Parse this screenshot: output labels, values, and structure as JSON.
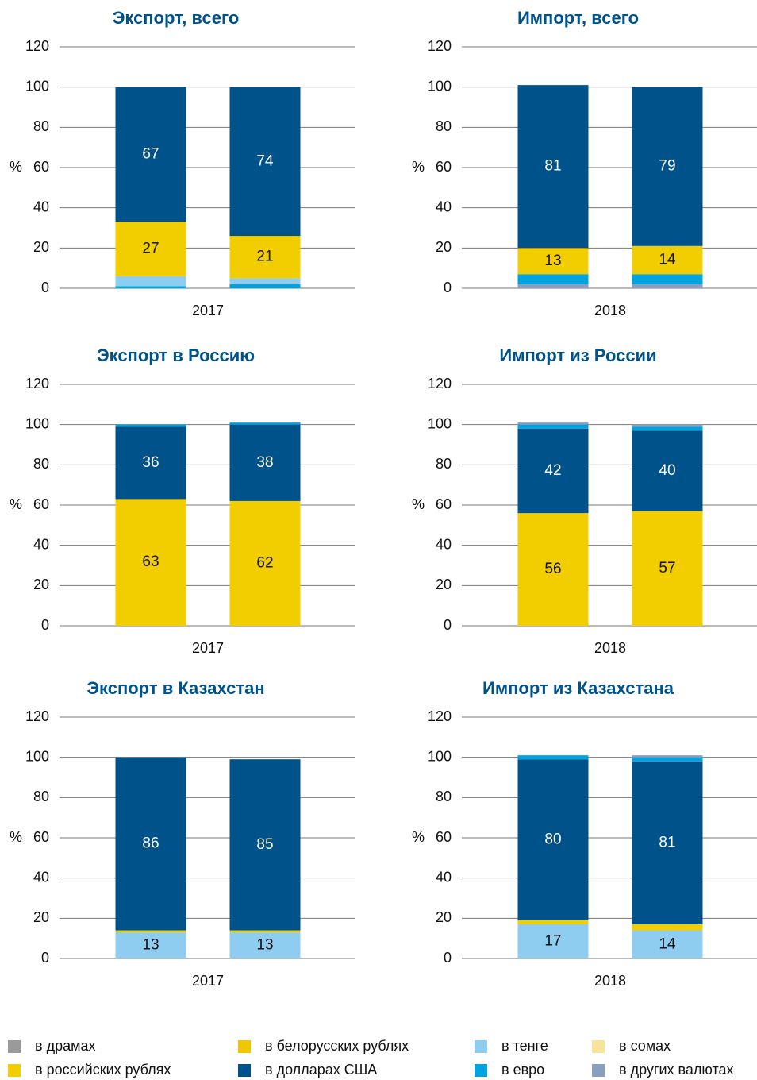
{
  "legend": [
    {
      "name": "в драмах",
      "color": "#9a9a9a"
    },
    {
      "name": "в белорусских рублях",
      "color": "#f0c800"
    },
    {
      "name": "в тенге",
      "color": "#8ecdf0"
    },
    {
      "name": "в сомах",
      "color": "#f7e49a"
    },
    {
      "name": "в российских рублях",
      "color": "#f2cd00"
    },
    {
      "name": "в долларах США",
      "color": "#00538a"
    },
    {
      "name": "в евро",
      "color": "#00a3e0"
    },
    {
      "name": "в других валютах",
      "color": "#8a9fc0"
    }
  ],
  "chart_data": [
    {
      "type": "bar",
      "stacked": true,
      "title": "Экспорт, всего",
      "ylabel": "%",
      "xlabel": "2017",
      "categories": [
        null,
        null
      ],
      "ylim": [
        0,
        120
      ],
      "yticks": [
        0,
        20,
        40,
        60,
        80,
        100,
        120
      ],
      "series": [
        {
          "name": "в евро",
          "values": [
            1,
            2
          ]
        },
        {
          "name": "в тенге",
          "values": [
            5,
            3
          ]
        },
        {
          "name": "в российских рублях",
          "values": [
            27,
            21
          ]
        },
        {
          "name": "в долларах США",
          "values": [
            67,
            74
          ]
        }
      ]
    },
    {
      "type": "bar",
      "stacked": true,
      "title": "Импорт, всего",
      "ylabel": "%",
      "xlabel": "2018",
      "categories": [
        null,
        null
      ],
      "ylim": [
        0,
        120
      ],
      "yticks": [
        0,
        20,
        40,
        60,
        80,
        100,
        120
      ],
      "series": [
        {
          "name": "в других валютах",
          "values": [
            2,
            2
          ]
        },
        {
          "name": "в евро",
          "values": [
            5,
            5
          ]
        },
        {
          "name": "в российских рублях",
          "values": [
            13,
            14
          ]
        },
        {
          "name": "в долларах США",
          "values": [
            81,
            79
          ]
        }
      ]
    },
    {
      "type": "bar",
      "stacked": true,
      "title": "Экспорт в Россию",
      "ylabel": "%",
      "xlabel": "2017",
      "categories": [
        null,
        null
      ],
      "ylim": [
        0,
        120
      ],
      "yticks": [
        0,
        20,
        40,
        60,
        80,
        100,
        120
      ],
      "series": [
        {
          "name": "в российских рублях",
          "values": [
            63,
            62
          ]
        },
        {
          "name": "в долларах США",
          "values": [
            36,
            38
          ]
        },
        {
          "name": "в евро",
          "values": [
            1,
            1
          ]
        }
      ]
    },
    {
      "type": "bar",
      "stacked": true,
      "title": "Импорт из России",
      "ylabel": "%",
      "xlabel": "2018",
      "categories": [
        null,
        null
      ],
      "ylim": [
        0,
        120
      ],
      "yticks": [
        0,
        20,
        40,
        60,
        80,
        100,
        120
      ],
      "series": [
        {
          "name": "в российских рублях",
          "values": [
            56,
            57
          ]
        },
        {
          "name": "в долларах США",
          "values": [
            42,
            40
          ]
        },
        {
          "name": "в евро",
          "values": [
            2,
            2
          ]
        },
        {
          "name": "в других валютах",
          "values": [
            1,
            1
          ]
        }
      ]
    },
    {
      "type": "bar",
      "stacked": true,
      "title": "Экспорт в Казахстан",
      "ylabel": "%",
      "xlabel": "2017",
      "categories": [
        null,
        null
      ],
      "ylim": [
        0,
        120
      ],
      "yticks": [
        0,
        20,
        40,
        60,
        80,
        100,
        120
      ],
      "series": [
        {
          "name": "в тенге",
          "values": [
            13,
            13
          ]
        },
        {
          "name": "в российских рублях",
          "values": [
            1,
            1
          ]
        },
        {
          "name": "в долларах США",
          "values": [
            86,
            85
          ]
        }
      ]
    },
    {
      "type": "bar",
      "stacked": true,
      "title": "Импорт из Казахстана",
      "ylabel": "%",
      "xlabel": "2018",
      "categories": [
        null,
        null
      ],
      "ylim": [
        0,
        120
      ],
      "yticks": [
        0,
        20,
        40,
        60,
        80,
        100,
        120
      ],
      "series": [
        {
          "name": "в тенге",
          "values": [
            17,
            14
          ]
        },
        {
          "name": "в российских рублях",
          "values": [
            2,
            3
          ]
        },
        {
          "name": "в долларах США",
          "values": [
            80,
            81
          ]
        },
        {
          "name": "в евро",
          "values": [
            2,
            2
          ]
        },
        {
          "name": "в других валютах",
          "values": [
            0,
            1
          ]
        }
      ]
    }
  ]
}
